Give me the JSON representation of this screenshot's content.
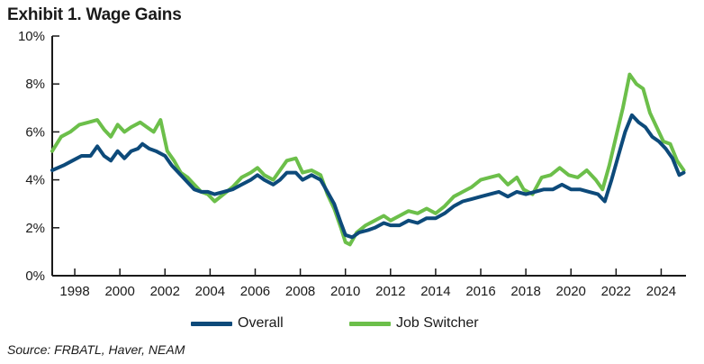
{
  "title": "Exhibit 1. Wage Gains",
  "source": "Source: FRBATL, Haver, NEAM",
  "colors": {
    "overall": "#0d4a7a",
    "job_switcher": "#6cbf4a",
    "axis": "#1a1a1a"
  },
  "legend": {
    "overall": "Overall",
    "job_switcher": "Job Switcher"
  },
  "chart_data": {
    "type": "line",
    "title": "Exhibit 1. Wage Gains",
    "xlabel": "",
    "ylabel": "",
    "xlim": [
      1997.0,
      2025.1
    ],
    "ylim": [
      0,
      10
    ],
    "y_ticks": [
      "0%",
      "2%",
      "4%",
      "6%",
      "8%",
      "10%"
    ],
    "x_ticks": [
      "1998",
      "2000",
      "2002",
      "2004",
      "2006",
      "2008",
      "2010",
      "2012",
      "2014",
      "2016",
      "2018",
      "2020",
      "2022",
      "2024"
    ],
    "grid": false,
    "legend_position": "bottom",
    "series": [
      {
        "name": "Overall",
        "color": "#0d4a7a",
        "points": [
          [
            1997.0,
            4.4
          ],
          [
            1997.5,
            4.6
          ],
          [
            1997.9,
            4.8
          ],
          [
            1998.3,
            5.0
          ],
          [
            1998.7,
            5.0
          ],
          [
            1999.0,
            5.4
          ],
          [
            1999.3,
            5.0
          ],
          [
            1999.6,
            4.8
          ],
          [
            1999.9,
            5.2
          ],
          [
            2000.2,
            4.9
          ],
          [
            2000.5,
            5.2
          ],
          [
            2000.8,
            5.3
          ],
          [
            2001.0,
            5.5
          ],
          [
            2001.3,
            5.3
          ],
          [
            2001.6,
            5.2
          ],
          [
            2002.0,
            5.0
          ],
          [
            2002.3,
            4.6
          ],
          [
            2002.7,
            4.2
          ],
          [
            2003.0,
            3.9
          ],
          [
            2003.3,
            3.6
          ],
          [
            2003.6,
            3.5
          ],
          [
            2003.9,
            3.5
          ],
          [
            2004.2,
            3.4
          ],
          [
            2004.6,
            3.5
          ],
          [
            2005.0,
            3.6
          ],
          [
            2005.4,
            3.8
          ],
          [
            2005.8,
            4.0
          ],
          [
            2006.1,
            4.2
          ],
          [
            2006.4,
            4.0
          ],
          [
            2006.8,
            3.8
          ],
          [
            2007.1,
            4.0
          ],
          [
            2007.4,
            4.3
          ],
          [
            2007.8,
            4.3
          ],
          [
            2008.1,
            4.0
          ],
          [
            2008.5,
            4.2
          ],
          [
            2008.9,
            4.0
          ],
          [
            2009.2,
            3.5
          ],
          [
            2009.5,
            3.0
          ],
          [
            2009.8,
            2.2
          ],
          [
            2010.0,
            1.7
          ],
          [
            2010.3,
            1.6
          ],
          [
            2010.6,
            1.8
          ],
          [
            2011.0,
            1.9
          ],
          [
            2011.3,
            2.0
          ],
          [
            2011.7,
            2.2
          ],
          [
            2012.0,
            2.1
          ],
          [
            2012.4,
            2.1
          ],
          [
            2012.8,
            2.3
          ],
          [
            2013.2,
            2.2
          ],
          [
            2013.6,
            2.4
          ],
          [
            2014.0,
            2.4
          ],
          [
            2014.4,
            2.6
          ],
          [
            2014.8,
            2.9
          ],
          [
            2015.2,
            3.1
          ],
          [
            2015.6,
            3.2
          ],
          [
            2016.0,
            3.3
          ],
          [
            2016.4,
            3.4
          ],
          [
            2016.8,
            3.5
          ],
          [
            2017.2,
            3.3
          ],
          [
            2017.6,
            3.5
          ],
          [
            2018.0,
            3.4
          ],
          [
            2018.4,
            3.5
          ],
          [
            2018.8,
            3.6
          ],
          [
            2019.2,
            3.6
          ],
          [
            2019.6,
            3.8
          ],
          [
            2020.0,
            3.6
          ],
          [
            2020.4,
            3.6
          ],
          [
            2020.8,
            3.5
          ],
          [
            2021.2,
            3.4
          ],
          [
            2021.5,
            3.1
          ],
          [
            2021.8,
            4.0
          ],
          [
            2022.1,
            5.0
          ],
          [
            2022.4,
            6.0
          ],
          [
            2022.7,
            6.7
          ],
          [
            2023.0,
            6.4
          ],
          [
            2023.3,
            6.2
          ],
          [
            2023.6,
            5.8
          ],
          [
            2023.9,
            5.6
          ],
          [
            2024.2,
            5.3
          ],
          [
            2024.5,
            4.9
          ],
          [
            2024.8,
            4.2
          ],
          [
            2025.0,
            4.3
          ]
        ]
      },
      {
        "name": "Job Switcher",
        "color": "#6cbf4a",
        "points": [
          [
            1997.0,
            5.2
          ],
          [
            1997.4,
            5.8
          ],
          [
            1997.8,
            6.0
          ],
          [
            1998.2,
            6.3
          ],
          [
            1998.6,
            6.4
          ],
          [
            1999.0,
            6.5
          ],
          [
            1999.3,
            6.1
          ],
          [
            1999.6,
            5.8
          ],
          [
            1999.9,
            6.3
          ],
          [
            2000.2,
            6.0
          ],
          [
            2000.5,
            6.2
          ],
          [
            2000.9,
            6.4
          ],
          [
            2001.2,
            6.2
          ],
          [
            2001.5,
            6.0
          ],
          [
            2001.8,
            6.5
          ],
          [
            2002.1,
            5.2
          ],
          [
            2002.4,
            4.8
          ],
          [
            2002.7,
            4.3
          ],
          [
            2003.0,
            4.1
          ],
          [
            2003.3,
            3.8
          ],
          [
            2003.6,
            3.5
          ],
          [
            2003.9,
            3.4
          ],
          [
            2004.2,
            3.1
          ],
          [
            2004.6,
            3.4
          ],
          [
            2005.0,
            3.7
          ],
          [
            2005.4,
            4.1
          ],
          [
            2005.8,
            4.3
          ],
          [
            2006.1,
            4.5
          ],
          [
            2006.4,
            4.2
          ],
          [
            2006.8,
            4.0
          ],
          [
            2007.1,
            4.4
          ],
          [
            2007.4,
            4.8
          ],
          [
            2007.8,
            4.9
          ],
          [
            2008.1,
            4.3
          ],
          [
            2008.5,
            4.4
          ],
          [
            2008.9,
            4.2
          ],
          [
            2009.2,
            3.4
          ],
          [
            2009.5,
            2.8
          ],
          [
            2009.8,
            2.0
          ],
          [
            2010.0,
            1.4
          ],
          [
            2010.2,
            1.3
          ],
          [
            2010.5,
            1.8
          ],
          [
            2010.9,
            2.1
          ],
          [
            2011.3,
            2.3
          ],
          [
            2011.7,
            2.5
          ],
          [
            2012.0,
            2.3
          ],
          [
            2012.4,
            2.5
          ],
          [
            2012.8,
            2.7
          ],
          [
            2013.2,
            2.6
          ],
          [
            2013.6,
            2.8
          ],
          [
            2014.0,
            2.6
          ],
          [
            2014.4,
            2.9
          ],
          [
            2014.8,
            3.3
          ],
          [
            2015.2,
            3.5
          ],
          [
            2015.6,
            3.7
          ],
          [
            2016.0,
            4.0
          ],
          [
            2016.4,
            4.1
          ],
          [
            2016.8,
            4.2
          ],
          [
            2017.2,
            3.8
          ],
          [
            2017.6,
            4.1
          ],
          [
            2017.9,
            3.6
          ],
          [
            2018.3,
            3.4
          ],
          [
            2018.7,
            4.1
          ],
          [
            2019.1,
            4.2
          ],
          [
            2019.5,
            4.5
          ],
          [
            2019.9,
            4.2
          ],
          [
            2020.3,
            4.1
          ],
          [
            2020.7,
            4.4
          ],
          [
            2021.1,
            4.0
          ],
          [
            2021.4,
            3.6
          ],
          [
            2021.7,
            4.6
          ],
          [
            2022.0,
            5.8
          ],
          [
            2022.3,
            7.0
          ],
          [
            2022.6,
            8.4
          ],
          [
            2022.9,
            8.0
          ],
          [
            2023.2,
            7.8
          ],
          [
            2023.5,
            6.8
          ],
          [
            2023.8,
            6.2
          ],
          [
            2024.1,
            5.6
          ],
          [
            2024.4,
            5.5
          ],
          [
            2024.7,
            4.8
          ],
          [
            2025.0,
            4.4
          ]
        ]
      }
    ]
  }
}
